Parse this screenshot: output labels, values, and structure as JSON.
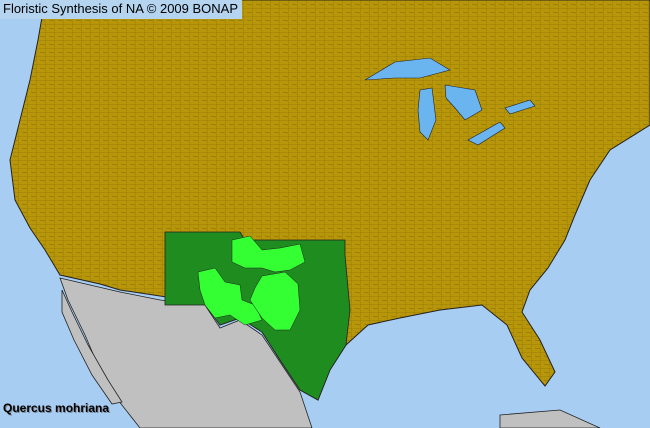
{
  "map": {
    "title": "Floristic Synthesis of NA © 2009 BONAP",
    "species": "Quercus mohriana",
    "colors": {
      "water": "#a8cdf2",
      "land_present_absent": "#b8960a",
      "outside_area": "#c0c0c0",
      "state_present": "#1e8c1e",
      "county_present": "#33ff33",
      "lakes": "#6ab4f0",
      "borders": "#2a2a2a"
    }
  }
}
